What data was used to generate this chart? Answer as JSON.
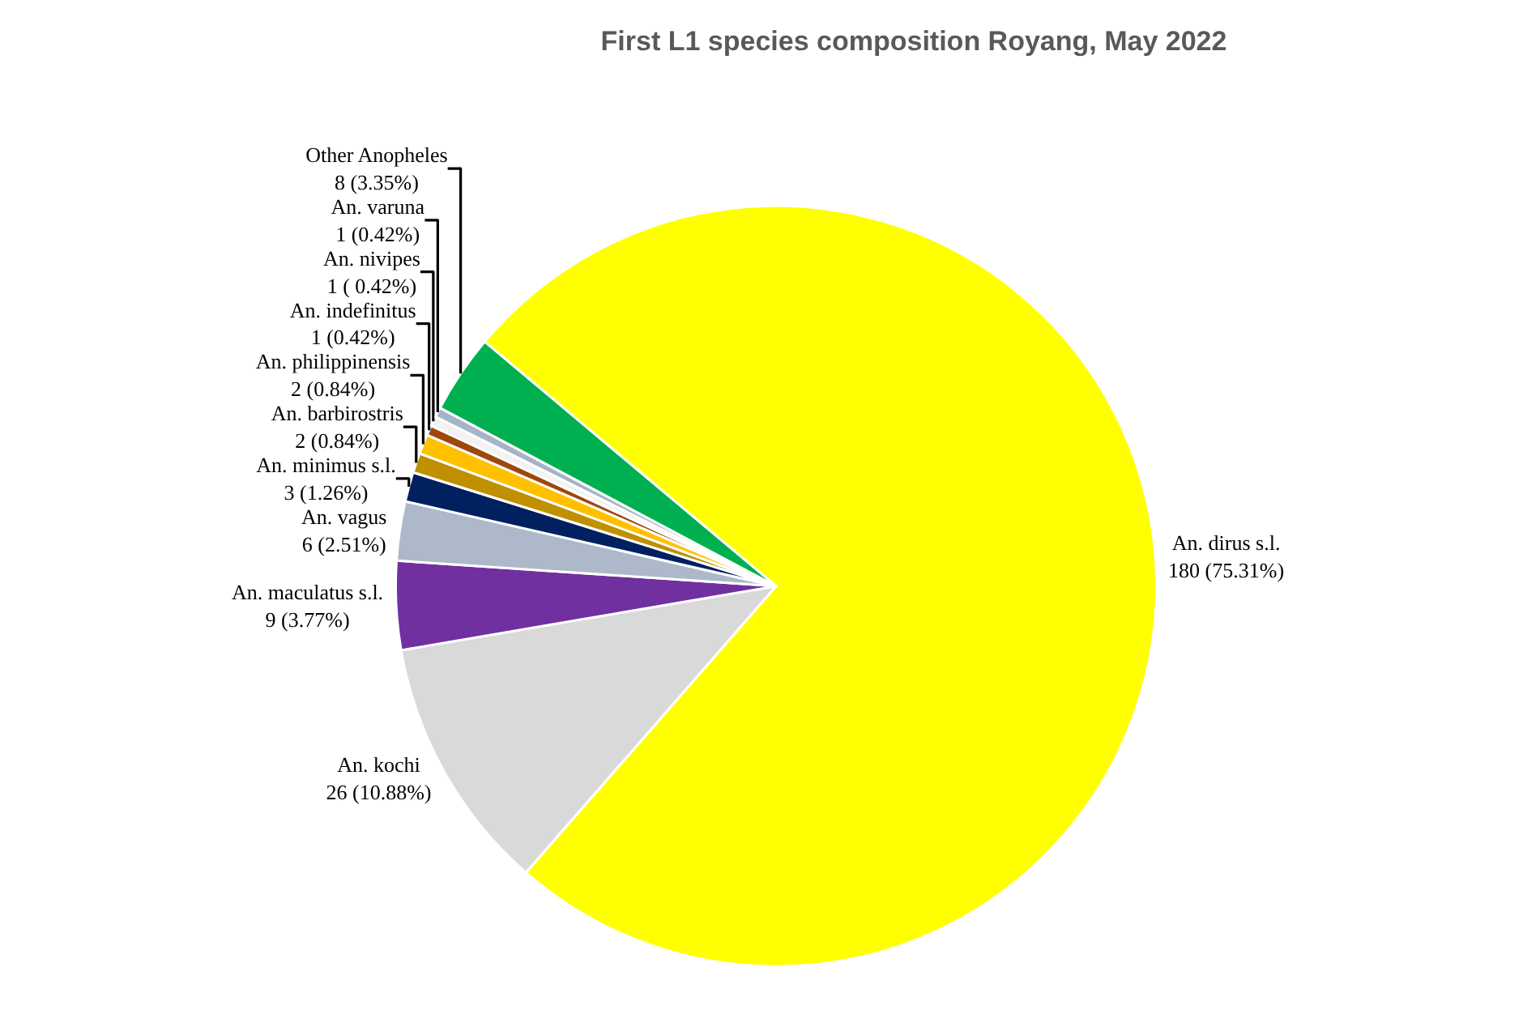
{
  "chart_data": {
    "type": "pie",
    "title": "First L1 species composition Royang, May 2022",
    "categories": [
      "An. dirus s.l.",
      "An. kochi",
      "An. maculatus s.l.",
      "An. vagus",
      "An. minimus s.l.",
      "An. barbirostris",
      "An. philippinensis",
      "An. indefinitus",
      "An. nivipes",
      "An. varuna",
      "Other Anopheles"
    ],
    "values": [
      180,
      26,
      9,
      6,
      3,
      2,
      2,
      1,
      1,
      1,
      8
    ],
    "value_labels": [
      "180 (75.31%)",
      "26 (10.88%)",
      "9 (3.77%)",
      "6 (2.51%)",
      "3 (1.26%)",
      "2 (0.84%)",
      "2 (0.84%)",
      "1 (0.42%)",
      "1 ( 0.42%)",
      "1 (0.42%)",
      "8 (3.35%)"
    ],
    "colors": [
      "#ffff00",
      "#d9d9d9",
      "#7030a0",
      "#adb9ca",
      "#002060",
      "#bf9000",
      "#ffc000",
      "#9e480e",
      "#f2f2f2",
      "#a5b4c8",
      "#00b050"
    ],
    "legend": false
  }
}
